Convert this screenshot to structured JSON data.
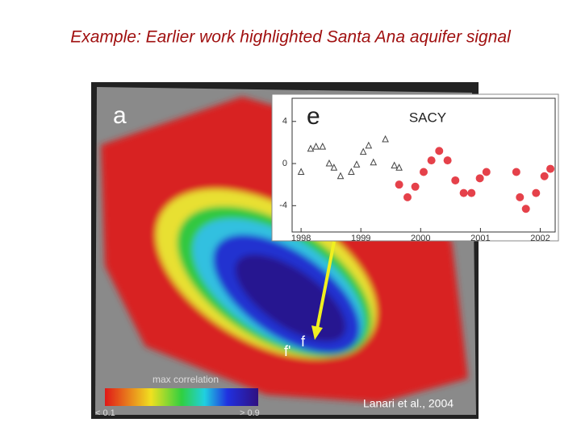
{
  "slide": {
    "title": "Example: Earlier work highlighted Santa Ana aquifer signal",
    "credit": "Lanari et al., 2004"
  },
  "map": {
    "panel_label": "a",
    "colorbar_title": "max correlation",
    "colorbar_min": "< 0.1",
    "colorbar_max": "> 0.9",
    "well_labels": [
      "f",
      "f'"
    ]
  },
  "chart_data": {
    "type": "scatter",
    "panel_label": "e",
    "title": "SACY",
    "xlim": [
      1997.85,
      2002.25
    ],
    "ylim": [
      -6.5,
      6.2
    ],
    "xticks": [
      1998,
      1999,
      2000,
      2001,
      2002
    ],
    "yticks": [
      -4,
      0,
      4
    ],
    "series": [
      {
        "color": "#444444",
        "marker": "triangle",
        "x": [
          1998.0,
          1998.16,
          1998.25,
          1998.36,
          1998.47,
          1998.55,
          1998.66,
          1998.84,
          1998.93,
          1999.04,
          1999.13,
          1999.21,
          1999.41,
          1999.56,
          1999.64
        ],
        "values": [
          -0.8,
          1.4,
          1.6,
          1.6,
          0,
          -0.4,
          -1.2,
          -0.8,
          -0.1,
          1.1,
          1.7,
          0.1,
          2.3,
          -0.2,
          -0.4
        ]
      },
      {
        "color": "#e0202a",
        "marker": "dot",
        "x": [
          1999.64,
          1999.78,
          1999.91,
          2000.05,
          2000.18,
          2000.31,
          2000.45,
          2000.58,
          2000.72,
          2000.85,
          2000.99,
          2001.1,
          2001.6,
          2001.66,
          2001.76,
          2001.93,
          2002.07,
          2002.17
        ],
        "values": [
          -2.0,
          -3.2,
          -2.2,
          -0.8,
          0.3,
          1.2,
          0.3,
          -1.6,
          -2.8,
          -2.8,
          -1.4,
          -0.8,
          -0.8,
          -3.2,
          -4.3,
          -2.8,
          -1.2,
          -0.5
        ]
      }
    ]
  }
}
